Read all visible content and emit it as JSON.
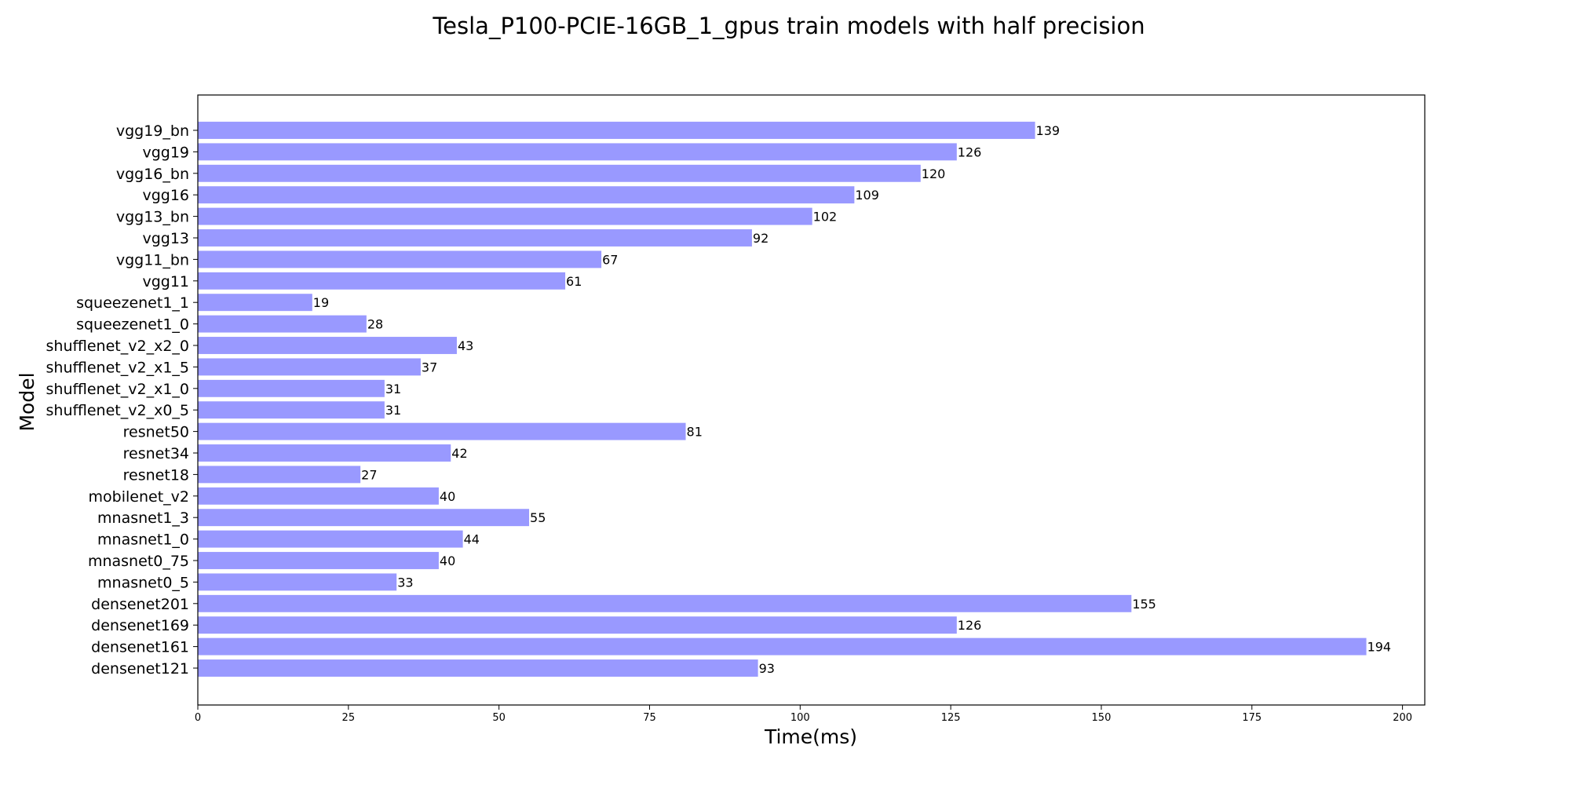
{
  "chart_data": {
    "type": "bar",
    "orientation": "horizontal",
    "title": "Tesla_P100-PCIE-16GB_1_gpus train models with half precision",
    "xlabel": "Time(ms)",
    "ylabel": "Model",
    "xlim": [
      0,
      203.7
    ],
    "xticks": [
      0,
      25,
      50,
      75,
      100,
      125,
      150,
      175,
      200
    ],
    "grid": false,
    "bar_color": "#9999ff",
    "categories": [
      "densenet121",
      "densenet161",
      "densenet169",
      "densenet201",
      "mnasnet0_5",
      "mnasnet0_75",
      "mnasnet1_0",
      "mnasnet1_3",
      "mobilenet_v2",
      "resnet18",
      "resnet34",
      "resnet50",
      "shufflenet_v2_x0_5",
      "shufflenet_v2_x1_0",
      "shufflenet_v2_x1_5",
      "shufflenet_v2_x2_0",
      "squeezenet1_0",
      "squeezenet1_1",
      "vgg11",
      "vgg11_bn",
      "vgg13",
      "vgg13_bn",
      "vgg16",
      "vgg16_bn",
      "vgg19",
      "vgg19_bn"
    ],
    "values": [
      93,
      194,
      126,
      155,
      33,
      40,
      44,
      55,
      40,
      27,
      42,
      81,
      31,
      31,
      37,
      43,
      28,
      19,
      61,
      67,
      92,
      102,
      109,
      120,
      126,
      139
    ]
  }
}
